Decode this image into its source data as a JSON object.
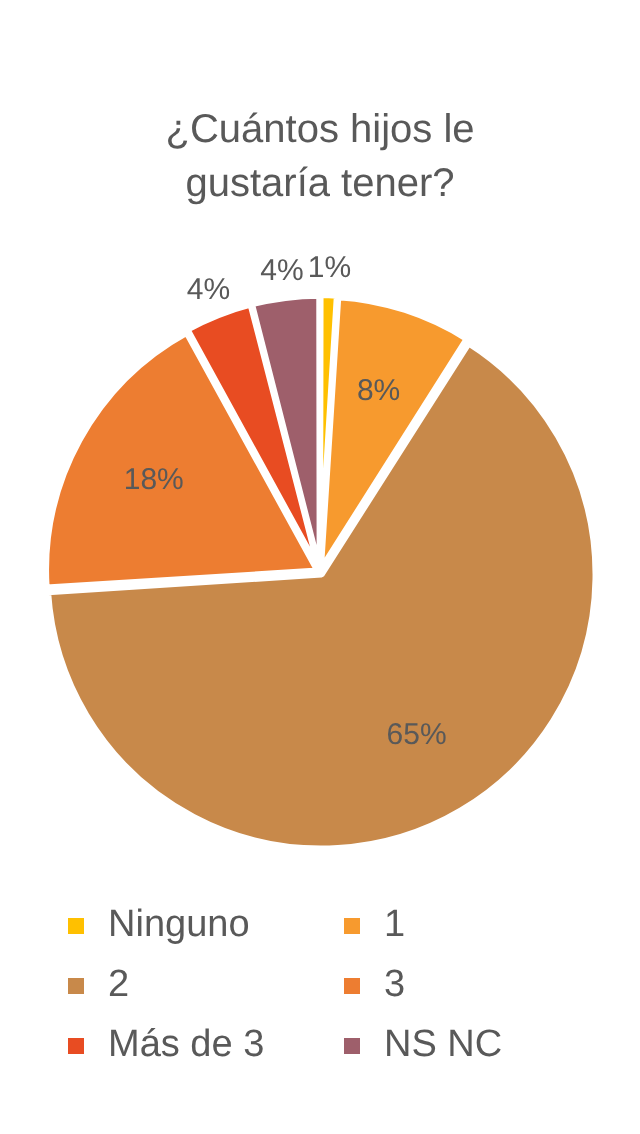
{
  "chart_data": {
    "type": "pie",
    "title": "¿Cuántos hijos le gustaría tener?",
    "categories": [
      "Ninguno",
      "1",
      "2",
      "3",
      "Más de 3",
      "NS NC"
    ],
    "values": [
      1,
      8,
      65,
      18,
      4,
      4
    ],
    "value_labels": [
      "1%",
      "8%",
      "65%",
      "18%",
      "4%",
      "4%"
    ],
    "colors": [
      "#ffc000",
      "#f79a2e",
      "#c8894a",
      "#ed7d31",
      "#e84c22",
      "#9e5f6b"
    ],
    "legend": "bottom"
  }
}
